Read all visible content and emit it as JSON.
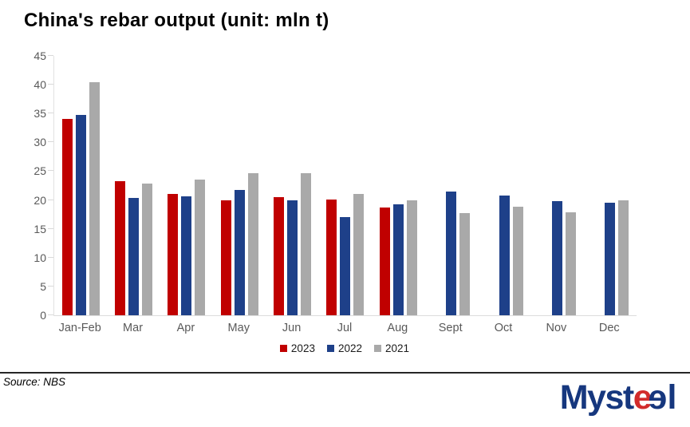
{
  "title": "China's rebar output (unit: mln t)",
  "source": "Source: NBS",
  "logo": {
    "part1": "Myst",
    "part2": "e",
    "part3": "e",
    "part4": "l",
    "blue": "#16377e",
    "red": "#d22b2b"
  },
  "chart_data": {
    "type": "bar",
    "title": "China's rebar output (unit: mln t)",
    "categories": [
      "Jan-Feb",
      "Mar",
      "Apr",
      "May",
      "Jun",
      "Jul",
      "Aug",
      "Sept",
      "Oct",
      "Nov",
      "Dec"
    ],
    "series": [
      {
        "name": "2023",
        "color": "#c00000",
        "values": [
          34.0,
          23.3,
          21.1,
          19.9,
          20.5,
          20.1,
          18.7,
          null,
          null,
          null,
          null
        ]
      },
      {
        "name": "2022",
        "color": "#1e4089",
        "values": [
          34.8,
          20.3,
          20.6,
          21.8,
          20.0,
          17.1,
          19.2,
          21.4,
          20.8,
          19.8,
          19.5
        ]
      },
      {
        "name": "2021",
        "color": "#a9a9a9",
        "values": [
          40.5,
          22.9,
          23.6,
          24.7,
          24.7,
          21.0,
          19.9,
          17.7,
          18.9,
          17.8,
          20.0
        ]
      }
    ],
    "xlabel": "",
    "ylabel": "",
    "ylim": [
      0,
      45
    ],
    "yticks": [
      0,
      5,
      10,
      15,
      20,
      25,
      30,
      35,
      40,
      45
    ],
    "grid": false,
    "legend_position": "bottom",
    "axis_color": "#595959"
  }
}
